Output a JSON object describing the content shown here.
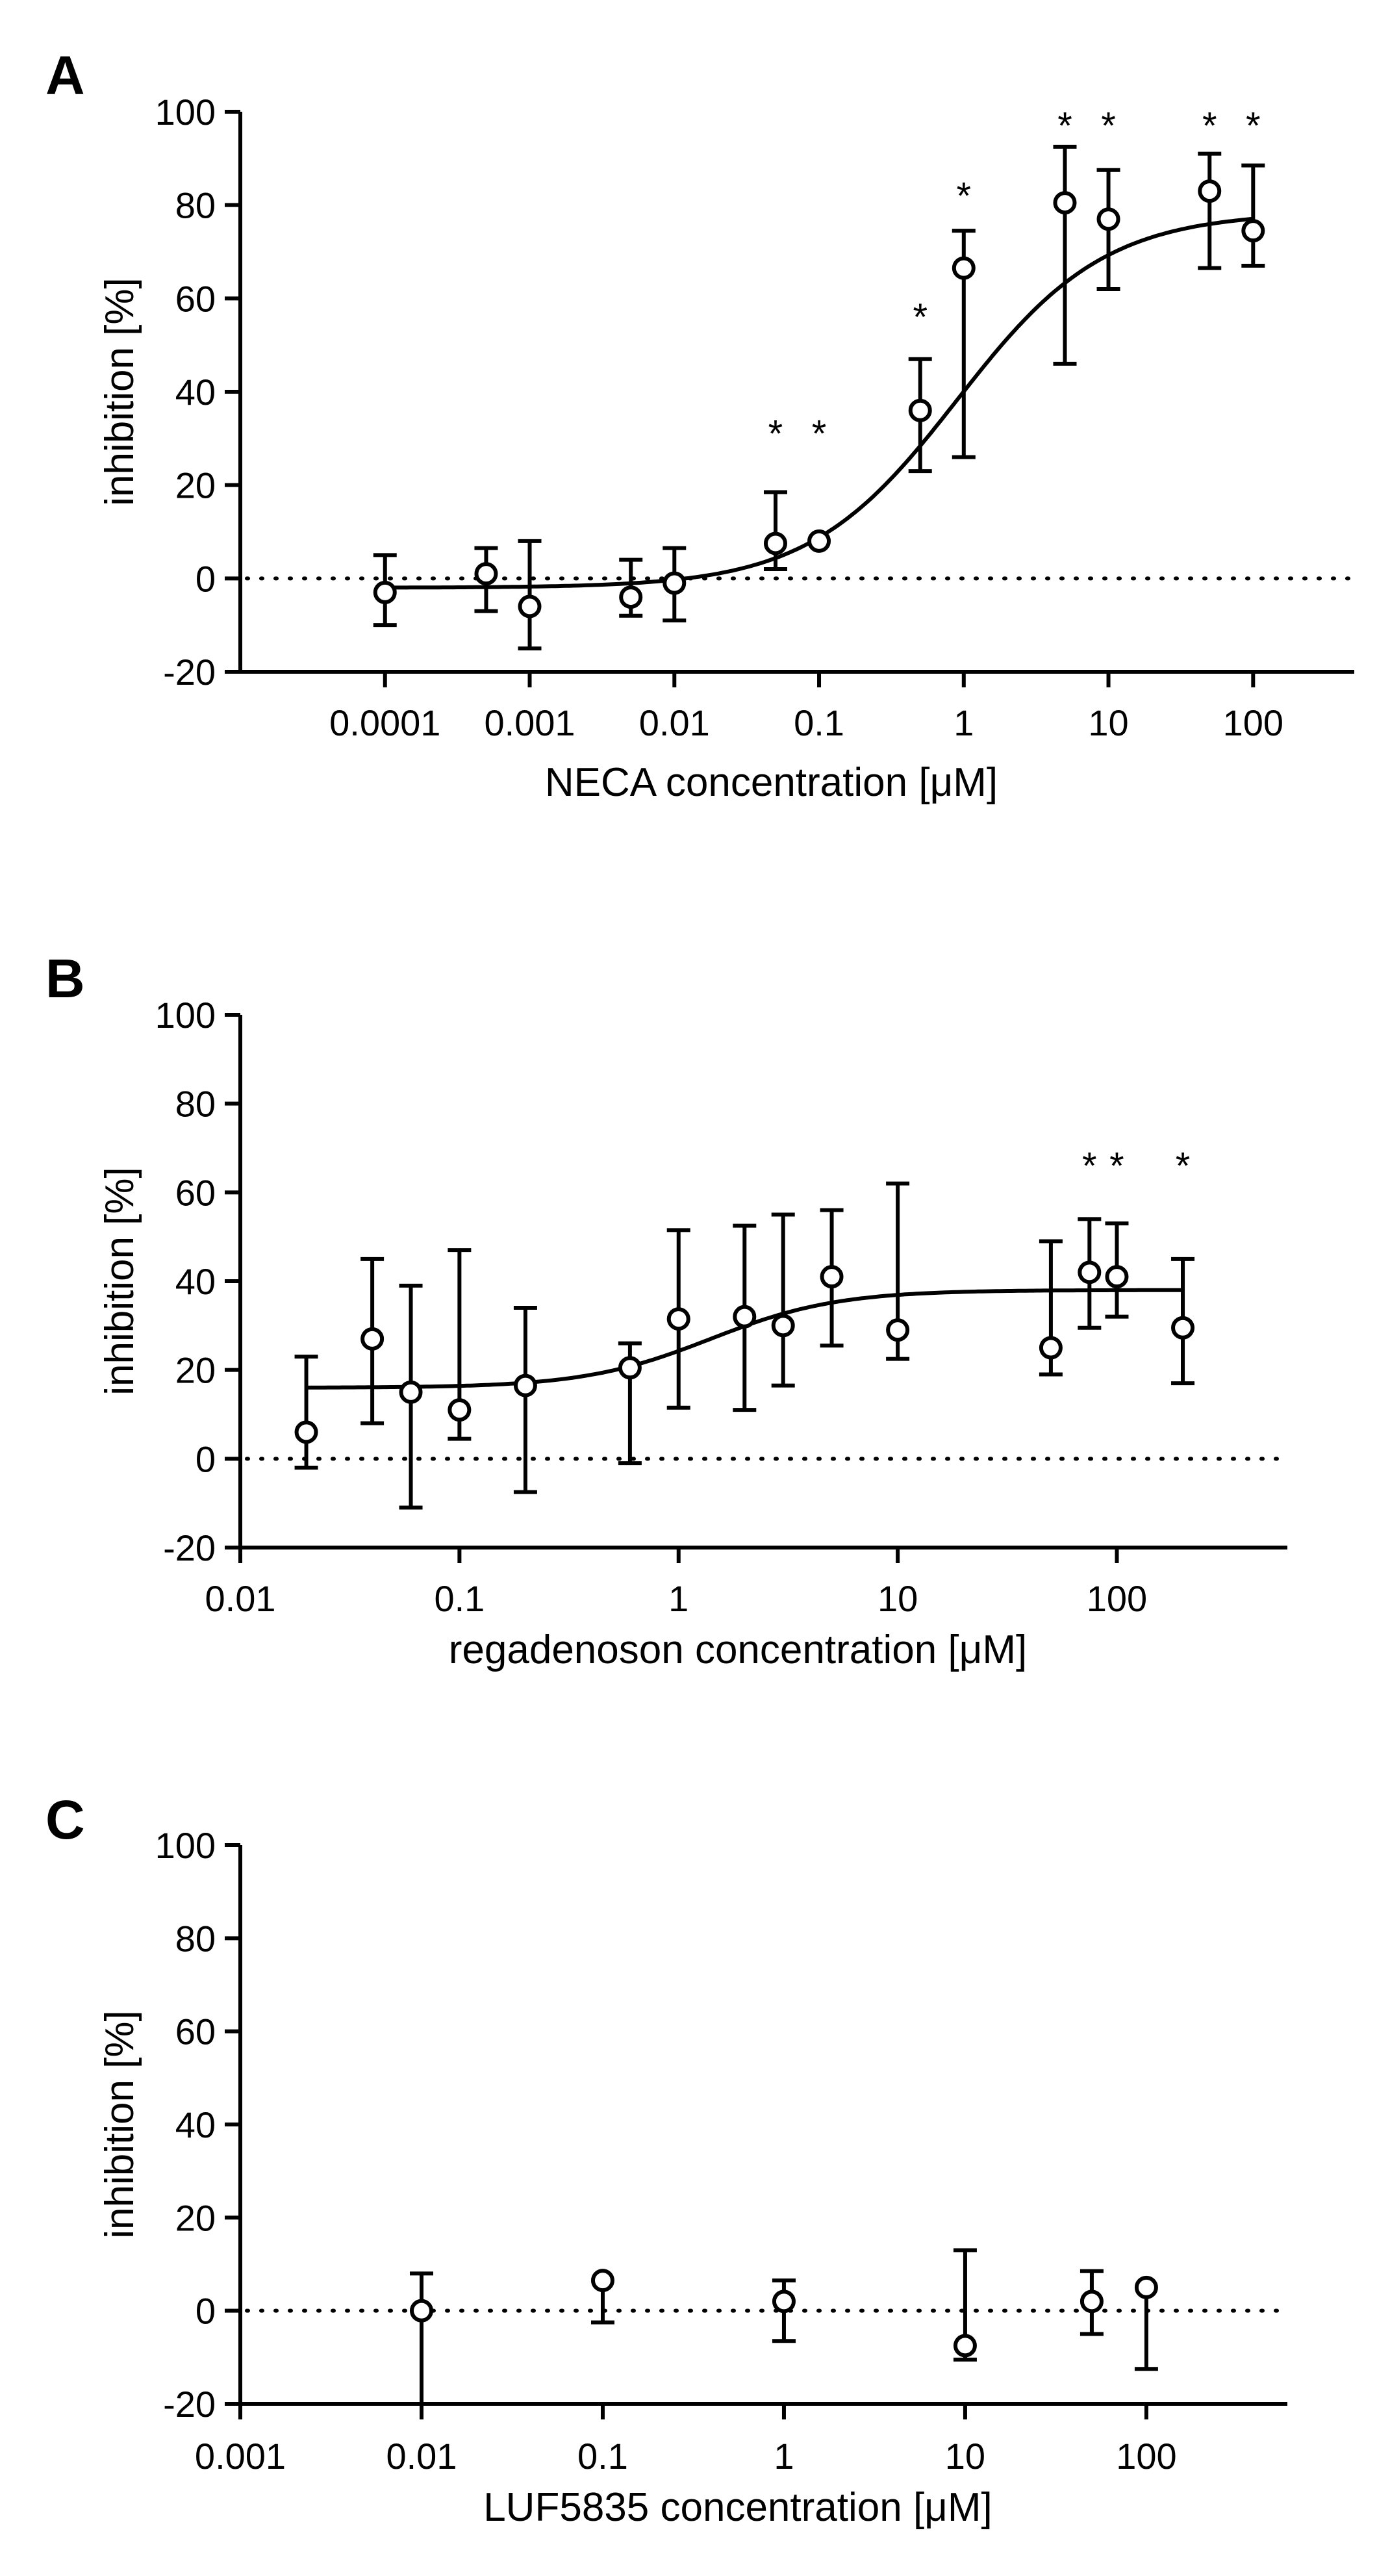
{
  "chart_data": [
    {
      "id": "A",
      "type": "scatter",
      "panel_label": "A",
      "xscale": "log",
      "xlim": [
        1e-05,
        500
      ],
      "ylim": [
        -20,
        100
      ],
      "xticks": [
        0.0001,
        0.001,
        0.01,
        0.1,
        1,
        10,
        100
      ],
      "xtick_labels": [
        "0.0001",
        "0.001",
        "0.01",
        "0.1",
        "1",
        "10",
        "100"
      ],
      "yticks": [
        -20,
        0,
        20,
        40,
        60,
        80,
        100
      ],
      "ytick_labels": [
        "-20",
        "0",
        "20",
        "40",
        "60",
        "80",
        "100"
      ],
      "xlabel": "NECA concentration [μM]",
      "ylabel": "inhibition [%]",
      "reference_line": {
        "y": 0,
        "style": "dotted"
      },
      "fit_curve": {
        "model": "four-parameter logistic",
        "bottom": -2,
        "top": 78.5,
        "ec50": 0.9,
        "hill": 0.85
      },
      "series": [
        {
          "name": "NECA",
          "marker": "open-circle",
          "x": [
            0.0001,
            0.0005,
            0.001,
            0.005,
            0.01,
            0.05,
            0.1,
            0.5,
            1,
            5,
            10,
            50,
            100
          ],
          "y": [
            -3,
            1,
            -6,
            -4,
            -1,
            7.5,
            8,
            36,
            66.5,
            80.5,
            77,
            83,
            74.5
          ],
          "err_low": [
            7,
            8,
            9,
            4,
            8,
            5.5,
            0,
            13,
            40.5,
            34.5,
            15,
            16.5,
            7.5
          ],
          "err_high": [
            8,
            5.5,
            14,
            8,
            7.5,
            11,
            0,
            11,
            8,
            12,
            10.5,
            8,
            14
          ]
        }
      ],
      "significance": [
        {
          "x": 0.05,
          "y": 31,
          "label": "*"
        },
        {
          "x": 0.1,
          "y": 31,
          "label": "*"
        },
        {
          "x": 0.5,
          "y": 56,
          "label": "*"
        },
        {
          "x": 1,
          "y": 82,
          "label": "*"
        },
        {
          "x": 5,
          "y": 97,
          "label": "*"
        },
        {
          "x": 10,
          "y": 97,
          "label": "*"
        },
        {
          "x": 50,
          "y": 97,
          "label": "*"
        },
        {
          "x": 100,
          "y": 97,
          "label": "*"
        }
      ]
    },
    {
      "id": "B",
      "type": "scatter",
      "panel_label": "B",
      "xscale": "log",
      "xlim": [
        0.01,
        600
      ],
      "ylim": [
        -20,
        100
      ],
      "xticks": [
        0.01,
        0.1,
        1,
        10,
        100
      ],
      "xtick_labels": [
        "0.01",
        "0.1",
        "1",
        "10",
        "100"
      ],
      "yticks": [
        -20,
        0,
        20,
        40,
        60,
        80,
        100
      ],
      "ytick_labels": [
        "-20",
        "0",
        "20",
        "40",
        "60",
        "80",
        "100"
      ],
      "xlabel": "regadenoson concentration [μM]",
      "ylabel": "inhibition [%]",
      "reference_line": {
        "y": 0,
        "style": "dotted"
      },
      "fit_curve": {
        "model": "four-parameter logistic",
        "bottom": 16,
        "top": 38,
        "ec50": 1.4,
        "hill": 1.5,
        "x_range": [
          0.02,
          200
        ]
      },
      "series": [
        {
          "name": "regadenoson",
          "marker": "open-circle",
          "x": [
            0.02,
            0.04,
            0.06,
            0.1,
            0.2,
            0.6,
            1,
            2,
            3,
            5,
            10,
            50,
            75,
            100,
            200
          ],
          "y": [
            6,
            27,
            15,
            11,
            16.5,
            20.5,
            31.5,
            32,
            30,
            41,
            29,
            25,
            42,
            41,
            29.5
          ],
          "err_low": [
            8,
            19,
            26,
            6.5,
            24,
            21.5,
            20,
            21,
            13.5,
            15.5,
            6.5,
            6,
            12.5,
            9,
            12.5
          ],
          "err_high": [
            17,
            18,
            24,
            36,
            17.5,
            5.5,
            20,
            20.5,
            25,
            15,
            33,
            24,
            12,
            12,
            15.5
          ]
        }
      ],
      "significance": [
        {
          "x": 75,
          "y": 66,
          "label": "*"
        },
        {
          "x": 100,
          "y": 66,
          "label": "*"
        },
        {
          "x": 200,
          "y": 66,
          "label": "*"
        }
      ]
    },
    {
      "id": "C",
      "type": "scatter",
      "panel_label": "C",
      "xscale": "log",
      "xlim": [
        0.001,
        600
      ],
      "ylim": [
        -20,
        100
      ],
      "xticks": [
        0.001,
        0.01,
        0.1,
        1,
        10,
        100
      ],
      "xtick_labels": [
        "0.001",
        "0.01",
        "0.1",
        "1",
        "10",
        "100"
      ],
      "yticks": [
        -20,
        0,
        20,
        40,
        60,
        80,
        100
      ],
      "ytick_labels": [
        "-20",
        "0",
        "20",
        "40",
        "60",
        "80",
        "100"
      ],
      "xlabel": "LUF5835 concentration [μM]",
      "ylabel": "inhibition [%]",
      "reference_line": {
        "y": 0,
        "style": "dotted"
      },
      "series": [
        {
          "name": "LUF5835",
          "marker": "open-circle",
          "x": [
            0.01,
            0.1,
            1,
            10,
            50,
            100
          ],
          "y": [
            0,
            6.5,
            2,
            -7.5,
            2,
            5
          ],
          "err_low": [
            20,
            9,
            8.5,
            3,
            7,
            17.5
          ],
          "err_high": [
            8,
            0,
            4.5,
            20.5,
            6.5,
            0
          ]
        }
      ],
      "significance": []
    }
  ]
}
